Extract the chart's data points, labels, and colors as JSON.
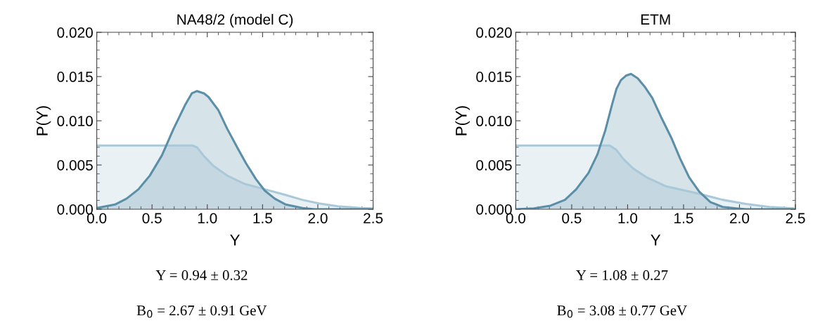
{
  "chart_data": [
    {
      "type": "area",
      "title": "NA48/2 (model C)",
      "xlabel": "Y",
      "ylabel": "P(Y)",
      "xlim": [
        0,
        2.5
      ],
      "ylim": [
        0,
        0.02
      ],
      "xticks": [
        {
          "value": 0,
          "label": "0.0"
        },
        {
          "value": 0.5,
          "label": "0.5"
        },
        {
          "value": 1,
          "label": "1.0"
        },
        {
          "value": 1.5,
          "label": "1.5"
        },
        {
          "value": 2,
          "label": "2.0"
        },
        {
          "value": 2.5,
          "label": "2.5"
        }
      ],
      "yticks": [
        {
          "value": 0,
          "label": "0.000"
        },
        {
          "value": 0.005,
          "label": "0.005"
        },
        {
          "value": 0.01,
          "label": "0.010"
        },
        {
          "value": 0.015,
          "label": "0.015"
        },
        {
          "value": 0.02,
          "label": "0.020"
        }
      ],
      "grid": false,
      "series": [
        {
          "color": "#a9c8d8",
          "x": [
            0,
            0.3,
            0.6,
            0.865,
            0.907,
            0.97,
            1.055,
            1.18,
            1.33,
            1.52,
            1.71,
            1.86,
            2.01,
            2.18,
            2.39,
            2.5
          ],
          "values": [
            0.0072,
            0.0072,
            0.0072,
            0.0072,
            0.007,
            0.006,
            0.0049,
            0.0038,
            0.0029,
            0.00225,
            0.0016,
            0.00106,
            0.00066,
            0.00034,
            0.00013,
            0.0001
          ]
        },
        {
          "color": "#5b8fa7",
          "x": [
            0,
            0.165,
            0.27,
            0.377,
            0.48,
            0.59,
            0.695,
            0.8,
            0.86,
            0.907,
            0.97,
            1.01,
            1.1,
            1.18,
            1.27,
            1.35,
            1.44,
            1.52,
            1.61,
            1.71,
            1.86,
            1.97,
            2.5
          ],
          "values": [
            0.00013,
            0.00053,
            0.0012,
            0.00225,
            0.0038,
            0.0061,
            0.0091,
            0.0118,
            0.0131,
            0.01336,
            0.0131,
            0.0127,
            0.0112,
            0.0091,
            0.007,
            0.0052,
            0.0034,
            0.0021,
            0.0012,
            0.00053,
            0.00013,
            0,
            0
          ]
        }
      ],
      "annotations": [
        "Y = 0.94 ± 0.32",
        "B$_{0}$ = 2.67 ± 0.91 GeV"
      ]
    },
    {
      "type": "area",
      "title": "ETM",
      "xlabel": "Y",
      "ylabel": "P(Y)",
      "xlim": [
        0,
        2.5
      ],
      "ylim": [
        0,
        0.02
      ],
      "xticks": [
        {
          "value": 0,
          "label": "0.0"
        },
        {
          "value": 0.5,
          "label": "0.5"
        },
        {
          "value": 1,
          "label": "1.0"
        },
        {
          "value": 1.5,
          "label": "1.5"
        },
        {
          "value": 2,
          "label": "2.0"
        },
        {
          "value": 2.5,
          "label": "2.5"
        }
      ],
      "yticks": [
        {
          "value": 0,
          "label": "0.000"
        },
        {
          "value": 0.005,
          "label": "0.005"
        },
        {
          "value": 0.01,
          "label": "0.010"
        },
        {
          "value": 0.015,
          "label": "0.015"
        },
        {
          "value": 0.02,
          "label": "0.020"
        }
      ],
      "grid": false,
      "series": [
        {
          "color": "#a9c8d8",
          "x": [
            0,
            0.3,
            0.6,
            0.84,
            0.9,
            0.96,
            1.05,
            1.17,
            1.34,
            1.62,
            1.85,
            2.06,
            2.27,
            2.48
          ],
          "values": [
            0.0072,
            0.0072,
            0.0072,
            0.0072,
            0.0067,
            0.0057,
            0.0046,
            0.0036,
            0.0026,
            0.0018,
            0.00106,
            0.0006,
            0.00026,
            0.0001
          ]
        },
        {
          "color": "#5b8fa7",
          "x": [
            0,
            0.164,
            0.31,
            0.44,
            0.54,
            0.65,
            0.73,
            0.8,
            0.86,
            0.9,
            0.94,
            0.985,
            1.03,
            1.09,
            1.15,
            1.22,
            1.3,
            1.39,
            1.47,
            1.55,
            1.64,
            1.74,
            1.85,
            1.97,
            2.06,
            2.5
          ],
          "values": [
            0,
            0.0001,
            0.0004,
            0.00106,
            0.00225,
            0.0041,
            0.0062,
            0.0089,
            0.0118,
            0.0136,
            0.0146,
            0.0151,
            0.0153,
            0.0148,
            0.0139,
            0.0126,
            0.0104,
            0.0081,
            0.0057,
            0.0036,
            0.002,
            0.0008,
            0.00026,
            0.0001,
            0,
            0
          ]
        }
      ],
      "annotations": [
        "Y = 1.08 ± 0.27",
        "B$_{0}$ = 3.08 ± 0.77 GeV"
      ]
    }
  ]
}
